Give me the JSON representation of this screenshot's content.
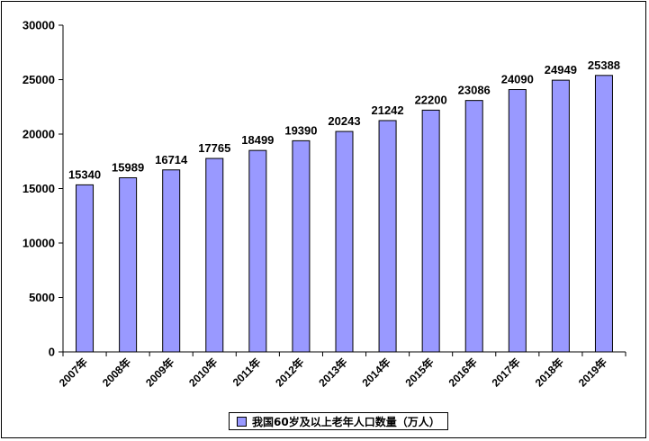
{
  "chart_data": {
    "type": "bar",
    "categories": [
      "2007年",
      "2008年",
      "2009年",
      "2010年",
      "2011年",
      "2012年",
      "2013年",
      "2014年",
      "2015年",
      "2016年",
      "2017年",
      "2018年",
      "2019年"
    ],
    "series": [
      {
        "name": "我国60岁及以上老年人口数量（万人）",
        "values": [
          15340,
          15989,
          16714,
          17765,
          18499,
          19390,
          20243,
          21242,
          22200,
          23086,
          24090,
          24949,
          25388
        ],
        "color": "#9999ff"
      }
    ],
    "ylim": [
      0,
      30000
    ],
    "yticks": [
      0,
      5000,
      10000,
      15000,
      20000,
      25000,
      30000
    ],
    "grid": false,
    "legend_position": "bottom"
  }
}
